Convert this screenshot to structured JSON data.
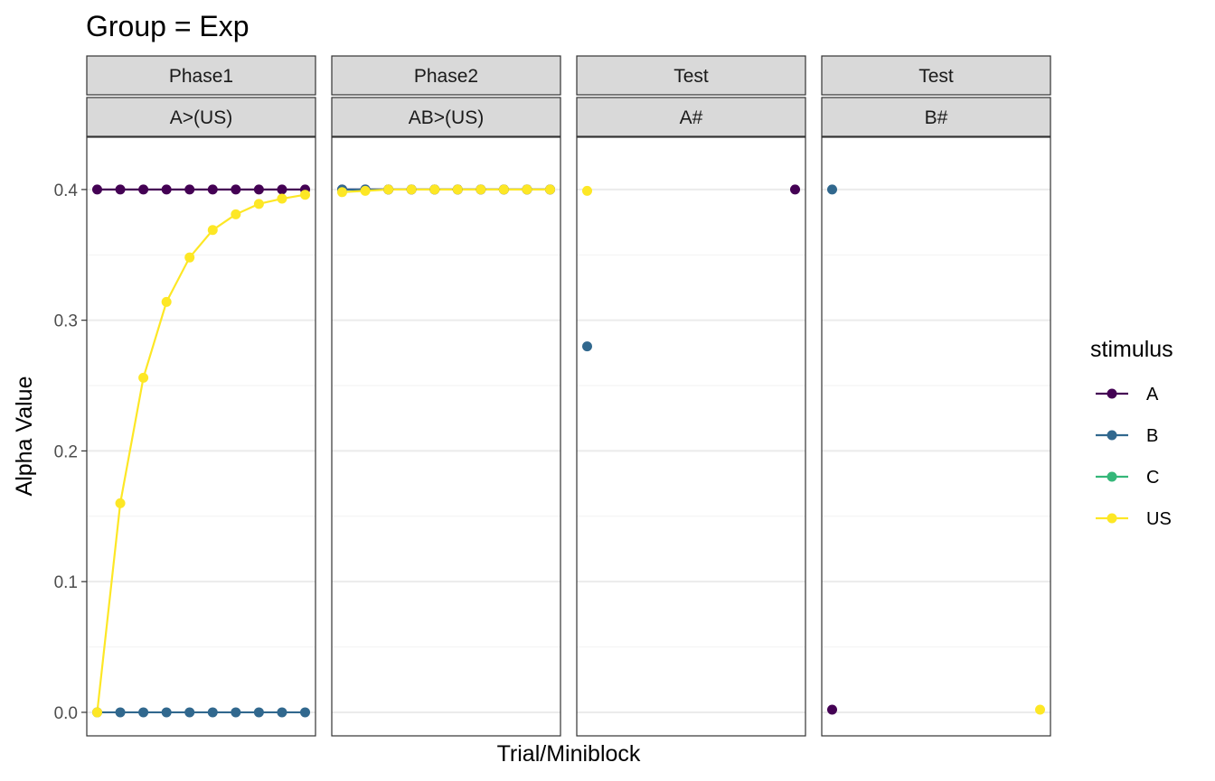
{
  "chart_data": {
    "type": "line",
    "title": "Group = Exp",
    "xlabel": "Trial/Miniblock",
    "ylabel": "Alpha Value",
    "ylim": [
      -0.018,
      0.44
    ],
    "yticks": [
      "0.0",
      "0.1",
      "0.2",
      "0.3",
      "0.4"
    ],
    "yticks_values": [
      0,
      0.1,
      0.2,
      0.3,
      0.4
    ],
    "grid": true,
    "legend": {
      "title": "stimulus",
      "placement": "right",
      "items": [
        {
          "label": "A",
          "color": "#440154"
        },
        {
          "label": "B",
          "color": "#31688E"
        },
        {
          "label": "C",
          "color": "#35B779"
        },
        {
          "label": "US",
          "color": "#FDE725"
        }
      ]
    },
    "panels": [
      {
        "strip_top": "Phase1",
        "strip_bottom": "A>(US)",
        "xlim": [
          0.55,
          10.45
        ],
        "series": [
          {
            "name": "A",
            "color": "#440154",
            "line": true,
            "x": [
              1,
              2,
              3,
              4,
              5,
              6,
              7,
              8,
              9,
              10
            ],
            "y": [
              0.4,
              0.4,
              0.4,
              0.4,
              0.4,
              0.4,
              0.4,
              0.4,
              0.4,
              0.4
            ]
          },
          {
            "name": "B",
            "color": "#31688E",
            "line": true,
            "x": [
              1,
              2,
              3,
              4,
              5,
              6,
              7,
              8,
              9,
              10
            ],
            "y": [
              0,
              0,
              0,
              0,
              0,
              0,
              0,
              0,
              0,
              0
            ]
          },
          {
            "name": "US",
            "color": "#FDE725",
            "line": true,
            "x": [
              1,
              2,
              3,
              4,
              5,
              6,
              7,
              8,
              9,
              10
            ],
            "y": [
              0,
              0.16,
              0.256,
              0.314,
              0.348,
              0.369,
              0.381,
              0.389,
              0.393,
              0.396
            ]
          }
        ]
      },
      {
        "strip_top": "Phase2",
        "strip_bottom": "AB>(US)",
        "xlim": [
          0.55,
          10.45
        ],
        "series": [
          {
            "name": "A",
            "color": "#440154",
            "line": true,
            "x": [
              1,
              2,
              3,
              4,
              5,
              6,
              7,
              8,
              9,
              10
            ],
            "y": [
              0.4,
              0.4,
              0.4,
              0.4,
              0.4,
              0.4,
              0.4,
              0.4,
              0.4,
              0.4
            ]
          },
          {
            "name": "B",
            "color": "#31688E",
            "line": true,
            "x": [
              1,
              2,
              3,
              4,
              5,
              6,
              7,
              8,
              9,
              10
            ],
            "y": [
              0.4,
              0.4,
              0.4,
              0.4,
              0.4,
              0.4,
              0.4,
              0.4,
              0.4,
              0.4
            ]
          },
          {
            "name": "US",
            "color": "#FDE725",
            "line": true,
            "x": [
              1,
              2,
              3,
              4,
              5,
              6,
              7,
              8,
              9,
              10
            ],
            "y": [
              0.398,
              0.399,
              0.4,
              0.4,
              0.4,
              0.4,
              0.4,
              0.4,
              0.4,
              0.4
            ]
          }
        ]
      },
      {
        "strip_top": "Test",
        "strip_bottom": "A#",
        "xlim": [
          0.55,
          10.45
        ],
        "series": [
          {
            "name": "B",
            "color": "#31688E",
            "line": false,
            "x": [
              1
            ],
            "y": [
              0.28
            ]
          },
          {
            "name": "US",
            "color": "#FDE725",
            "line": false,
            "x": [
              1
            ],
            "y": [
              0.399
            ]
          },
          {
            "name": "A",
            "color": "#440154",
            "line": false,
            "x": [
              10
            ],
            "y": [
              0.4
            ]
          }
        ]
      },
      {
        "strip_top": "Test",
        "strip_bottom": "B#",
        "xlim": [
          0.55,
          10.45
        ],
        "series": [
          {
            "name": "B",
            "color": "#31688E",
            "line": false,
            "x": [
              1
            ],
            "y": [
              0.4
            ]
          },
          {
            "name": "A",
            "color": "#440154",
            "line": false,
            "x": [
              1
            ],
            "y": [
              0.002
            ]
          },
          {
            "name": "US",
            "color": "#FDE725",
            "line": false,
            "x": [
              10
            ],
            "y": [
              0.002
            ]
          }
        ]
      }
    ]
  }
}
